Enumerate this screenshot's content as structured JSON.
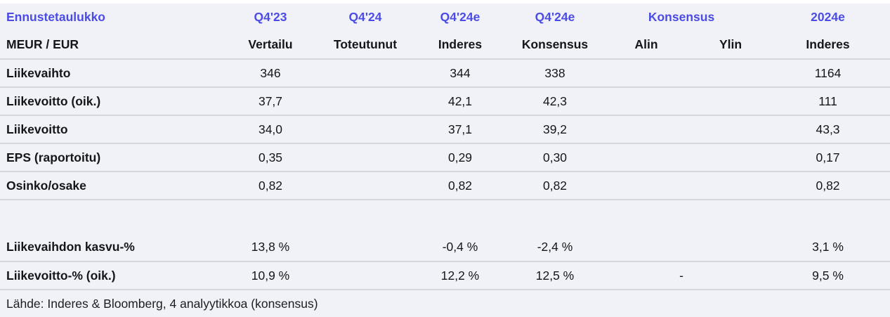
{
  "colors": {
    "header_accent": "#4b4ce6",
    "table_background": "#f1f2f8",
    "row_separator": "#d3d7e0",
    "text": "#15161a"
  },
  "chart_data": {
    "type": "table",
    "title": "Ennustetaulukko",
    "unit_label": "MEUR / EUR",
    "col_groups": {
      "g0": "Q4'23",
      "g1": "Q4'24",
      "g2": "Q4'24e",
      "g3": "Q4'24e",
      "g4": "Konsensus",
      "g5": "2024e"
    },
    "col_headers": {
      "h0": "Vertailu",
      "h1": "Toteutunut",
      "h2": "Inderes",
      "h3": "Konsensus",
      "h4": "Alin",
      "h5": "Ylin",
      "h6": "Inderes"
    },
    "rows": [
      {
        "label": "Liikevaihto",
        "cells": [
          "346",
          "",
          "344",
          "338",
          "",
          "",
          "1164"
        ]
      },
      {
        "label": "Liikevoitto (oik.)",
        "cells": [
          "37,7",
          "",
          "42,1",
          "42,3",
          "",
          "",
          "111"
        ]
      },
      {
        "label": "Liikevoitto",
        "cells": [
          "34,0",
          "",
          "37,1",
          "39,2",
          "",
          "",
          "43,3"
        ]
      },
      {
        "label": "EPS (raportoitu)",
        "cells": [
          "0,35",
          "",
          "0,29",
          "0,30",
          "",
          "",
          "0,17"
        ]
      },
      {
        "label": "Osinko/osake",
        "cells": [
          "0,82",
          "",
          "0,82",
          "0,82",
          "",
          "",
          "0,82"
        ]
      },
      {
        "label": "",
        "cells": [
          "",
          "",
          "",
          "",
          "",
          "",
          ""
        ]
      },
      {
        "label": "Liikevaihdon kasvu-%",
        "cells": [
          "13,8 %",
          "",
          "-0,4 %",
          "-2,4 %",
          "",
          "",
          "3,1 %"
        ]
      },
      {
        "label": "Liikevoitto-% (oik.)",
        "cells": [
          "10,9 %",
          "",
          "12,2 %",
          "12,5 %",
          "-",
          "",
          "9,5 %"
        ]
      }
    ],
    "footer": "Lähde: Inderes & Bloomberg, 4 analyytikkoa  (konsensus)"
  }
}
